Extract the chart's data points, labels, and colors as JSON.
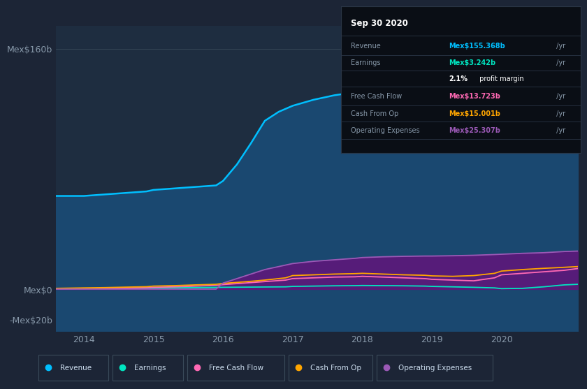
{
  "background_color": "#1c2536",
  "plot_bg_color": "#1e2d40",
  "y_labels": [
    "Mex$160b",
    "Mex$0",
    "-Mex$20b"
  ],
  "y_ticks": [
    160,
    0,
    -20
  ],
  "ylim": [
    -28,
    175
  ],
  "x_ticks": [
    2014,
    2015,
    2016,
    2017,
    2018,
    2019,
    2020
  ],
  "xlim": [
    2013.6,
    2021.1
  ],
  "revenue_x": [
    2013.6,
    2014.0,
    2014.3,
    2014.6,
    2014.9,
    2015.0,
    2015.3,
    2015.6,
    2015.9,
    2016.0,
    2016.2,
    2016.4,
    2016.6,
    2016.8,
    2017.0,
    2017.3,
    2017.6,
    2017.9,
    2018.0,
    2018.3,
    2018.6,
    2018.9,
    2019.0,
    2019.3,
    2019.6,
    2019.9,
    2020.0,
    2020.3,
    2020.6,
    2020.9,
    2021.1
  ],
  "revenue_y": [
    62,
    62,
    63,
    64,
    65,
    66,
    67,
    68,
    69,
    72,
    83,
    97,
    112,
    118,
    122,
    126,
    129,
    131,
    132,
    133,
    134,
    135,
    136,
    138,
    141,
    144,
    147,
    150,
    153,
    155,
    156
  ],
  "opex_x": [
    2013.6,
    2014.0,
    2014.5,
    2015.0,
    2015.5,
    2015.9,
    2016.0,
    2016.2,
    2016.4,
    2016.6,
    2016.8,
    2017.0,
    2017.3,
    2017.6,
    2017.9,
    2018.0,
    2018.3,
    2018.6,
    2018.9,
    2019.0,
    2019.3,
    2019.6,
    2019.9,
    2020.0,
    2020.3,
    2020.6,
    2020.9,
    2021.1
  ],
  "opex_y": [
    0,
    0,
    0,
    0,
    0,
    0,
    4,
    7,
    10,
    13,
    15,
    17,
    18.5,
    19.5,
    20.5,
    21,
    21.5,
    21.8,
    22,
    22,
    22.2,
    22.5,
    23,
    23.2,
    23.8,
    24.2,
    25,
    25.3
  ],
  "earnings_x": [
    2013.6,
    2014.0,
    2014.3,
    2014.6,
    2014.9,
    2015.0,
    2015.3,
    2015.6,
    2015.9,
    2016.0,
    2016.3,
    2016.6,
    2016.9,
    2017.0,
    2017.3,
    2017.6,
    2017.9,
    2018.0,
    2018.3,
    2018.6,
    2018.9,
    2019.0,
    2019.3,
    2019.6,
    2019.9,
    2020.0,
    2020.3,
    2020.6,
    2020.9,
    2021.1
  ],
  "earnings_y": [
    0.3,
    0.4,
    0.5,
    0.6,
    0.7,
    0.8,
    0.9,
    1.0,
    1.1,
    1.2,
    1.3,
    1.4,
    1.5,
    1.8,
    2.0,
    2.2,
    2.3,
    2.4,
    2.3,
    2.2,
    2.0,
    1.8,
    1.5,
    1.2,
    0.8,
    0.3,
    0.5,
    1.5,
    2.8,
    3.2
  ],
  "fcf_x": [
    2013.6,
    2014.0,
    2014.3,
    2014.6,
    2014.9,
    2015.0,
    2015.3,
    2015.6,
    2015.9,
    2016.0,
    2016.3,
    2016.6,
    2016.9,
    2017.0,
    2017.3,
    2017.6,
    2017.9,
    2018.0,
    2018.3,
    2018.6,
    2018.9,
    2019.0,
    2019.3,
    2019.6,
    2019.9,
    2020.0,
    2020.3,
    2020.6,
    2020.9,
    2021.1
  ],
  "fcf_y": [
    0.2,
    0.3,
    0.5,
    0.8,
    1.0,
    1.2,
    1.5,
    2.0,
    2.5,
    3.0,
    4.0,
    5.0,
    6.0,
    7.0,
    7.5,
    8.0,
    8.2,
    8.5,
    8.0,
    7.5,
    7.0,
    6.5,
    6.0,
    5.5,
    7.5,
    9.5,
    10.5,
    11.5,
    12.5,
    13.7
  ],
  "cop_x": [
    2013.6,
    2014.0,
    2014.3,
    2014.6,
    2014.9,
    2015.0,
    2015.3,
    2015.6,
    2015.9,
    2016.0,
    2016.3,
    2016.6,
    2016.9,
    2017.0,
    2017.3,
    2017.6,
    2017.9,
    2018.0,
    2018.3,
    2018.6,
    2018.9,
    2019.0,
    2019.3,
    2019.6,
    2019.9,
    2020.0,
    2020.3,
    2020.6,
    2020.9,
    2021.1
  ],
  "cop_y": [
    0.5,
    0.8,
    1.0,
    1.3,
    1.6,
    2.0,
    2.3,
    2.8,
    3.2,
    3.8,
    4.8,
    6.0,
    7.5,
    9.0,
    9.5,
    10.0,
    10.3,
    10.5,
    10.0,
    9.5,
    9.2,
    8.8,
    8.5,
    9.0,
    10.5,
    12.0,
    13.0,
    13.8,
    14.5,
    15.0
  ],
  "revenue_color": "#00bfff",
  "earnings_color": "#00e5c0",
  "fcf_color": "#ff69b4",
  "cop_color": "#ffa500",
  "opex_color": "#9b59b6",
  "revenue_fill": "#1a4870",
  "opex_fill": "#5a1a7a",
  "tooltip": {
    "date": "Sep 30 2020",
    "rows": [
      {
        "label": "Revenue",
        "value": "Mex$155.368b",
        "suffix": " /yr",
        "color": "#00bfff"
      },
      {
        "label": "Earnings",
        "value": "Mex$3.242b",
        "suffix": " /yr",
        "color": "#00e5c0"
      },
      {
        "label": "",
        "value": "2.1%",
        "extra": " profit margin",
        "suffix": "",
        "color": "white"
      },
      {
        "label": "Free Cash Flow",
        "value": "Mex$13.723b",
        "suffix": " /yr",
        "color": "#ff69b4"
      },
      {
        "label": "Cash From Op",
        "value": "Mex$15.001b",
        "suffix": " /yr",
        "color": "#ffa500"
      },
      {
        "label": "Operating Expenses",
        "value": "Mex$25.307b",
        "suffix": " /yr",
        "color": "#9b59b6"
      }
    ]
  },
  "legend": [
    {
      "label": "Revenue",
      "color": "#00bfff"
    },
    {
      "label": "Earnings",
      "color": "#00e5c0"
    },
    {
      "label": "Free Cash Flow",
      "color": "#ff69b4"
    },
    {
      "label": "Cash From Op",
      "color": "#ffa500"
    },
    {
      "label": "Operating Expenses",
      "color": "#9b59b6"
    }
  ]
}
